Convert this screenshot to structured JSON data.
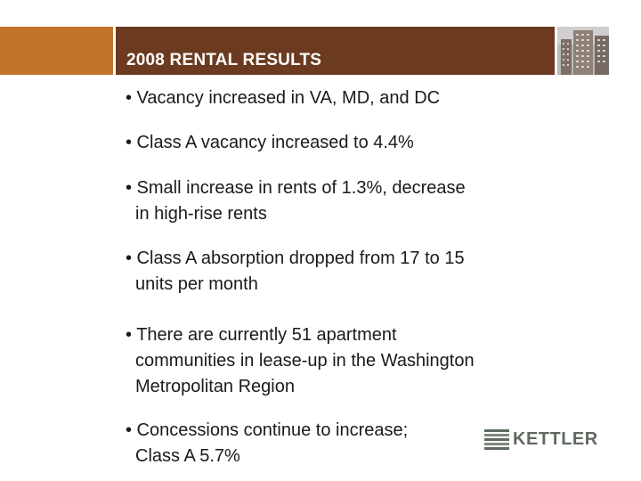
{
  "slide": {
    "title": "2008 RENTAL RESULTS",
    "bullets": [
      {
        "lines": [
          "• Vacancy increased in VA, MD, and DC"
        ]
      },
      {
        "lines": [
          "• Class A vacancy increased to 4.4%"
        ]
      },
      {
        "lines": [
          "• Small increase in rents of 1.3%, decrease",
          "in high-rise rents"
        ]
      },
      {
        "lines": [
          "• Class A absorption dropped from 17 to 15",
          "units per month"
        ]
      },
      {
        "lines": [
          "• There are currently 51 apartment",
          "communities in lease-up in the Washington",
          "Metropolitan Region"
        ]
      },
      {
        "lines": [
          "• Concessions continue to increase;",
          "Class A 5.7%"
        ]
      }
    ]
  },
  "logo": {
    "text": "KETTLER",
    "icon": "kettler-stripes-icon"
  },
  "header_image": {
    "icon": "skyscraper-photo-icon"
  },
  "colors": {
    "orange_band": "#c4742a",
    "brown_band": "#6b3a1f",
    "title_text": "#ffffff",
    "body_text": "#1a1a1a",
    "logo_text": "#5f6b5f"
  }
}
